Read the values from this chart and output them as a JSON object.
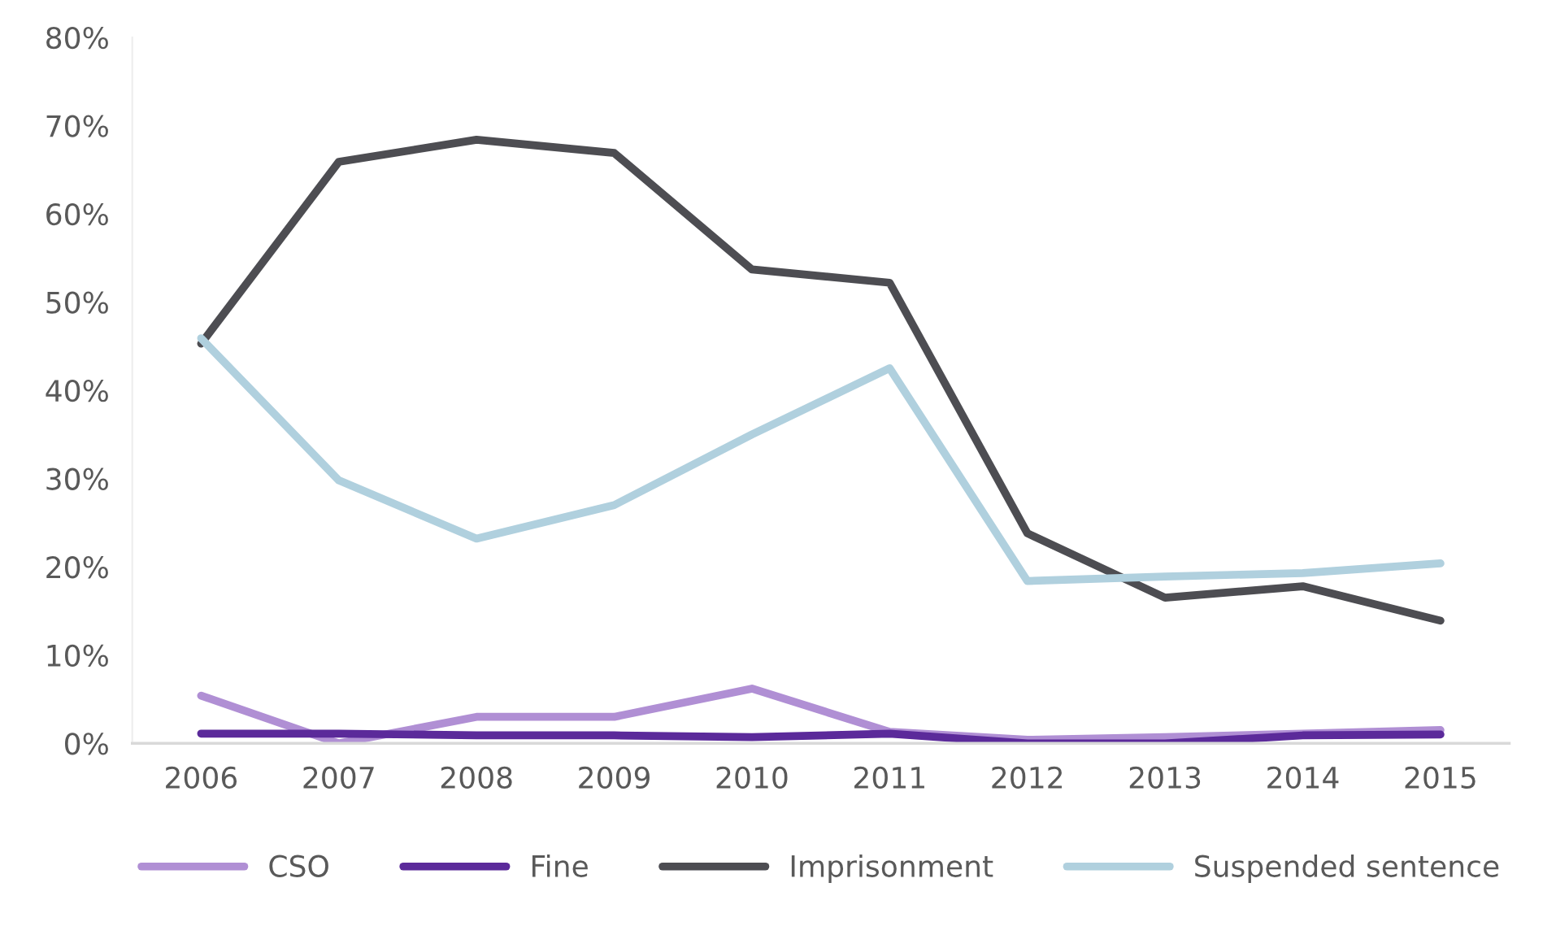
{
  "chart_data": {
    "type": "line",
    "categories": [
      "2006",
      "2007",
      "2008",
      "2009",
      "2010",
      "2011",
      "2012",
      "2013",
      "2014",
      "2015"
    ],
    "series": [
      {
        "name": "CSO",
        "color": "#b08fd4",
        "values": [
          5.4,
          0,
          3.0,
          3.0,
          6.2,
          1.3,
          0.4,
          0.7,
          1.1,
          1.5
        ]
      },
      {
        "name": "Fine",
        "color": "#5b2a9a",
        "values": [
          1.1,
          1.1,
          0.9,
          0.9,
          0.7,
          1.1,
          0,
          0,
          0.9,
          1.0
        ]
      },
      {
        "name": "Imprisonment",
        "color": "#4d4d52",
        "values": [
          45.3,
          65.9,
          68.4,
          66.9,
          53.7,
          52.2,
          23.8,
          16.5,
          17.8,
          13.9
        ]
      },
      {
        "name": "Suspended sentence",
        "color": "#b0d0de",
        "values": [
          45.9,
          29.8,
          23.2,
          27.0,
          35.0,
          42.5,
          18.4,
          18.9,
          19.3,
          20.4
        ]
      }
    ],
    "ylim": [
      0,
      80
    ],
    "yticks": [
      {
        "value": 0,
        "label": "0%"
      },
      {
        "value": 10,
        "label": "10%"
      },
      {
        "value": 20,
        "label": "20%"
      },
      {
        "value": 30,
        "label": "30%"
      },
      {
        "value": 40,
        "label": "40%"
      },
      {
        "value": 50,
        "label": "50%"
      },
      {
        "value": 60,
        "label": "60%"
      },
      {
        "value": 70,
        "label": "70%"
      },
      {
        "value": 80,
        "label": "80%"
      }
    ],
    "grid": false,
    "legend": "bottom",
    "marker": "none",
    "line_style": "solid"
  }
}
